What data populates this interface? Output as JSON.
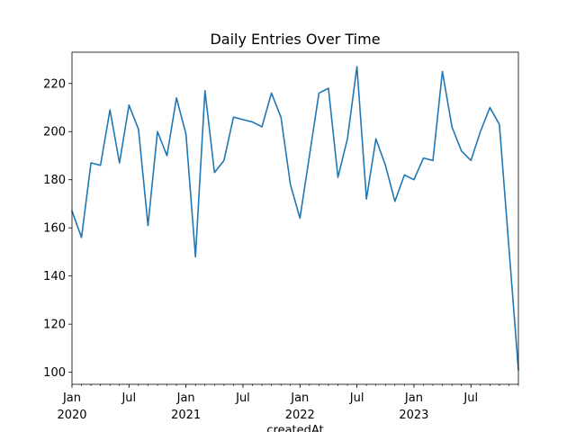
{
  "chart_data": {
    "type": "line",
    "title": "Daily Entries Over Time",
    "xlabel": "createdAt",
    "ylabel": "",
    "ylim": [
      95,
      233
    ],
    "xlim": [
      "2020-01",
      "2023-12"
    ],
    "grid": false,
    "line_color": "#1f77b4",
    "y_ticks": [
      100,
      120,
      140,
      160,
      180,
      200,
      220
    ],
    "x_major_ticks": [
      {
        "x": "2020-01",
        "label": "Jan",
        "year": "2020"
      },
      {
        "x": "2020-07",
        "label": "Jul",
        "year": ""
      },
      {
        "x": "2021-01",
        "label": "Jan",
        "year": "2021"
      },
      {
        "x": "2021-07",
        "label": "Jul",
        "year": ""
      },
      {
        "x": "2022-01",
        "label": "Jan",
        "year": "2022"
      },
      {
        "x": "2022-07",
        "label": "Jul",
        "year": ""
      },
      {
        "x": "2023-01",
        "label": "Jan",
        "year": "2023"
      },
      {
        "x": "2023-07",
        "label": "Jul",
        "year": ""
      }
    ],
    "series": [
      {
        "x": [
          "2020-01",
          "2020-02",
          "2020-03",
          "2020-04",
          "2020-05",
          "2020-06",
          "2020-07",
          "2020-08",
          "2020-09",
          "2020-10",
          "2020-11",
          "2020-12",
          "2021-01",
          "2021-02",
          "2021-03",
          "2021-04",
          "2021-05",
          "2021-06",
          "2021-07",
          "2021-08",
          "2021-09",
          "2021-10",
          "2021-11",
          "2021-12",
          "2022-01",
          "2022-02",
          "2022-03",
          "2022-04",
          "2022-05",
          "2022-06",
          "2022-07",
          "2022-08",
          "2022-09",
          "2022-10",
          "2022-11",
          "2022-12",
          "2023-01",
          "2023-02",
          "2023-03",
          "2023-04",
          "2023-05",
          "2023-06",
          "2023-07",
          "2023-08",
          "2023-09",
          "2023-10",
          "2023-11",
          "2023-12"
        ],
        "values": [
          167,
          156,
          187,
          186,
          209,
          187,
          211,
          201,
          161,
          200,
          190,
          214,
          199,
          148,
          217,
          183,
          188,
          206,
          205,
          204,
          202,
          216,
          206,
          178,
          164,
          190,
          216,
          218,
          181,
          197,
          227,
          172,
          197,
          186,
          171,
          182,
          180,
          189,
          188,
          225,
          202,
          192,
          188,
          200,
          210,
          203,
          null,
          101
        ]
      }
    ]
  }
}
